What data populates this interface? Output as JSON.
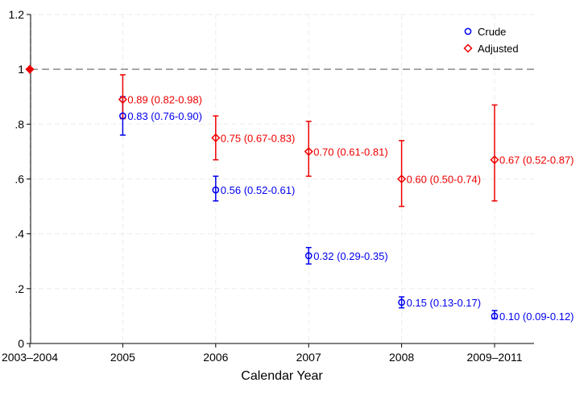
{
  "chart_data": {
    "type": "scatter",
    "title": "",
    "xlabel": "Calendar Year",
    "ylabel": "",
    "categories": [
      "2003–2004",
      "2005",
      "2006",
      "2007",
      "2008",
      "2009–2011"
    ],
    "ylim": [
      0,
      1.2
    ],
    "yticks": [
      {
        "value": 0,
        "label": "0"
      },
      {
        "value": 0.2,
        "label": ".2"
      },
      {
        "value": 0.4,
        "label": ".4"
      },
      {
        "value": 0.6,
        "label": ".6"
      },
      {
        "value": 0.8,
        "label": ".8"
      },
      {
        "value": 1,
        "label": "1"
      },
      {
        "value": 1.2,
        "label": "1.2"
      }
    ],
    "reference_line": 1,
    "grid": true,
    "legend_position": "top-right",
    "series": [
      {
        "name": "Crude",
        "color": "#0000ee",
        "marker": "circle",
        "points": [
          {
            "category": "2005",
            "value": 0.83,
            "lower": 0.76,
            "upper": 0.9,
            "label": "0.83 (0.76-0.90)"
          },
          {
            "category": "2006",
            "value": 0.56,
            "lower": 0.52,
            "upper": 0.61,
            "label": "0.56 (0.52-0.61)"
          },
          {
            "category": "2007",
            "value": 0.32,
            "lower": 0.29,
            "upper": 0.35,
            "label": "0.32 (0.29-0.35)"
          },
          {
            "category": "2008",
            "value": 0.15,
            "lower": 0.13,
            "upper": 0.17,
            "label": "0.15 (0.13-0.17)"
          },
          {
            "category": "2009–2011",
            "value": 0.1,
            "lower": 0.09,
            "upper": 0.12,
            "label": "0.10 (0.09-0.12)"
          }
        ]
      },
      {
        "name": "Adjusted",
        "color": "#ee0000",
        "marker": "diamond",
        "points": [
          {
            "category": "2003–2004",
            "value": 1.0,
            "lower": null,
            "upper": null,
            "label": ""
          },
          {
            "category": "2005",
            "value": 0.89,
            "lower": 0.82,
            "upper": 0.98,
            "label": "0.89 (0.82-0.98)"
          },
          {
            "category": "2006",
            "value": 0.75,
            "lower": 0.67,
            "upper": 0.83,
            "label": "0.75 (0.67-0.83)"
          },
          {
            "category": "2007",
            "value": 0.7,
            "lower": 0.61,
            "upper": 0.81,
            "label": "0.70 (0.61-0.81)"
          },
          {
            "category": "2008",
            "value": 0.6,
            "lower": 0.5,
            "upper": 0.74,
            "label": "0.60 (0.50-0.74)"
          },
          {
            "category": "2009–2011",
            "value": 0.67,
            "lower": 0.52,
            "upper": 0.87,
            "label": "0.67 (0.52-0.87)"
          }
        ]
      }
    ]
  }
}
